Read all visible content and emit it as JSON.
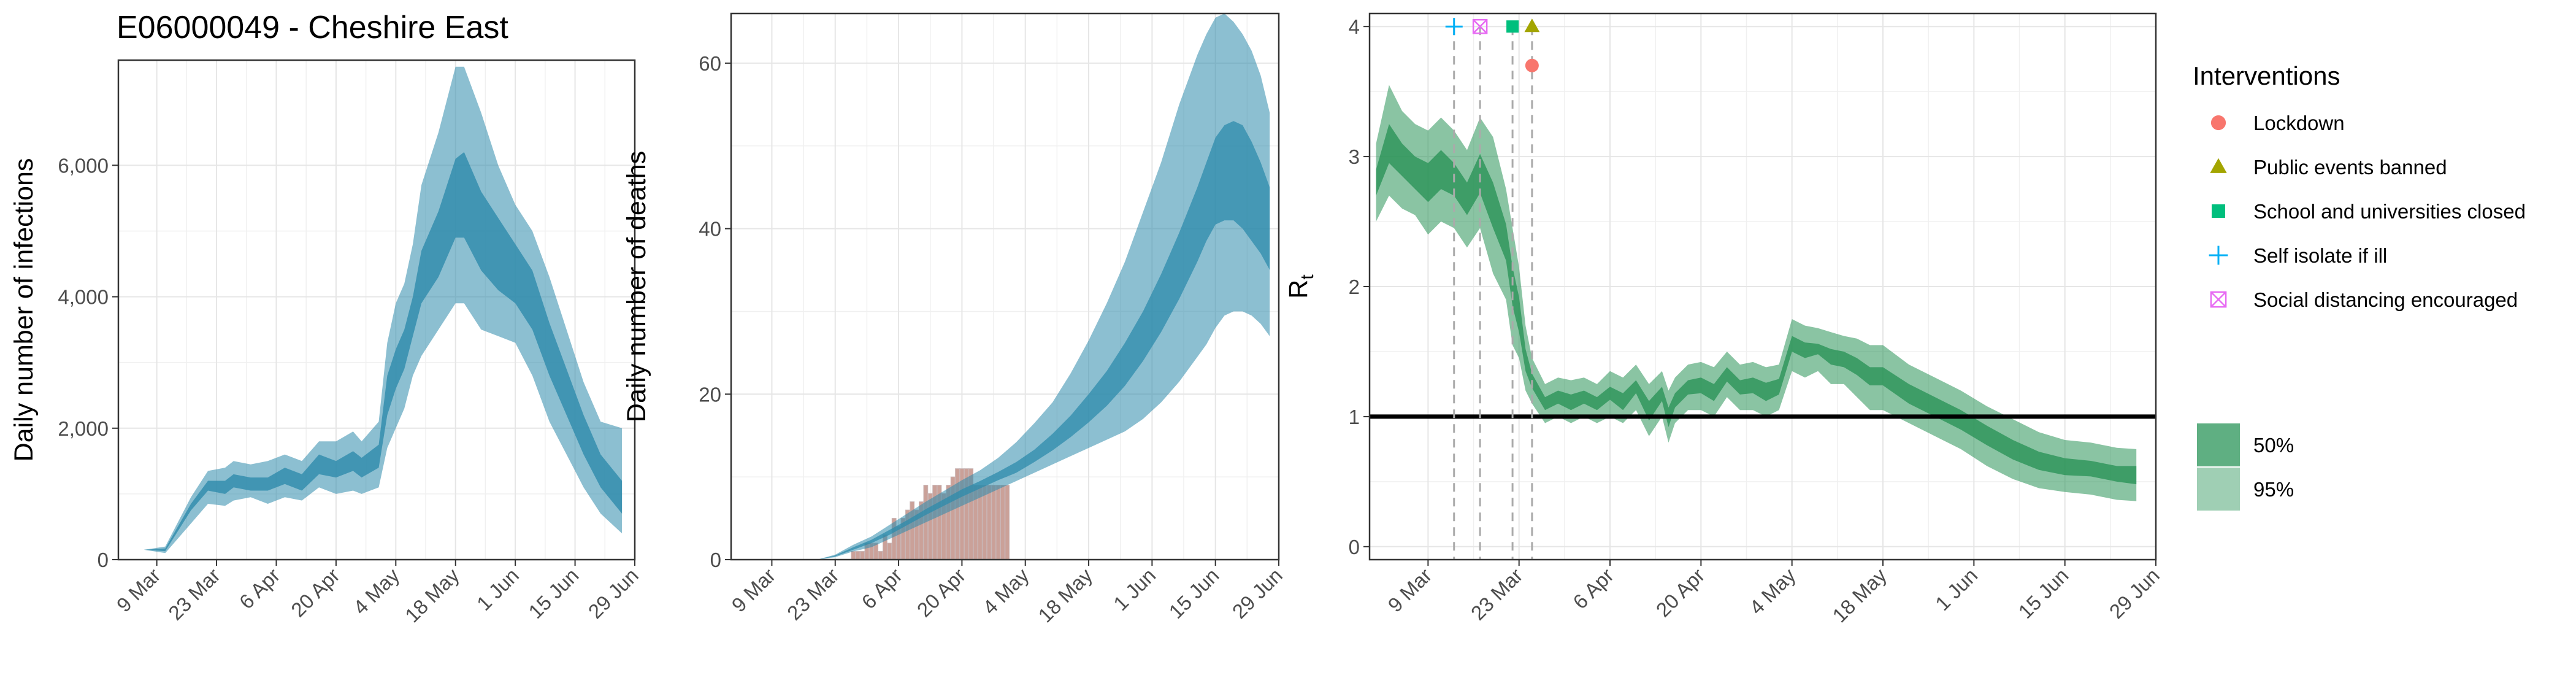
{
  "title": "E06000049 - Cheshire East",
  "colors": {
    "band_blue": "#2e8bab",
    "band_green": "#2a9458",
    "bar": "#c89c94",
    "bar_edge": "#c8b4b4",
    "lockdown": "#f8766d",
    "public_events": "#a3a500",
    "school": "#00bf7d",
    "self_isolate": "#00b0f6",
    "social_distancing": "#e76bf3"
  },
  "chart_data": [
    {
      "type": "area",
      "name": "infections",
      "ylabel": "Daily number of infections",
      "ylim": [
        0,
        7600
      ],
      "yticks": [
        0,
        2000,
        4000,
        6000
      ],
      "ytick_labels": [
        "0",
        "2,000",
        "4,000",
        "6,000"
      ],
      "xtick_labels": [
        "9 Mar",
        "23 Mar",
        "6 Apr",
        "20 Apr",
        "4 May",
        "18 May",
        "1 Jun",
        "15 Jun",
        "29 Jun"
      ],
      "xtick_days": [
        8,
        22,
        36,
        50,
        64,
        78,
        92,
        106,
        120
      ],
      "x_range_days": [
        -1,
        120
      ],
      "grid": true,
      "bands": [
        {
          "label": "95%",
          "x": [
            5,
            10,
            16,
            20,
            24,
            26,
            30,
            34,
            38,
            42,
            46,
            50,
            54,
            56,
            60,
            62,
            64,
            66,
            68,
            70,
            74,
            78,
            80,
            84,
            88,
            92,
            96,
            100,
            104,
            108,
            112,
            117
          ],
          "lo": [
            150,
            100,
            550,
            850,
            820,
            900,
            950,
            850,
            950,
            900,
            1100,
            1000,
            1050,
            1000,
            1100,
            1700,
            2000,
            2300,
            2800,
            3100,
            3500,
            3900,
            3900,
            3500,
            3400,
            3300,
            2800,
            2100,
            1600,
            1100,
            700,
            400
          ],
          "hi": [
            150,
            200,
            950,
            1350,
            1400,
            1500,
            1450,
            1500,
            1600,
            1500,
            1800,
            1800,
            1950,
            1800,
            2100,
            3300,
            3900,
            4200,
            4800,
            5700,
            6500,
            7500,
            7500,
            6800,
            6000,
            5400,
            5000,
            4300,
            3500,
            2700,
            2100,
            2000
          ]
        },
        {
          "label": "50%",
          "x": [
            5,
            10,
            16,
            20,
            24,
            26,
            30,
            34,
            38,
            42,
            46,
            50,
            54,
            56,
            60,
            62,
            64,
            66,
            68,
            70,
            74,
            78,
            80,
            84,
            88,
            92,
            96,
            100,
            104,
            108,
            112,
            117
          ],
          "lo": [
            150,
            130,
            750,
            1050,
            1000,
            1100,
            1050,
            1050,
            1150,
            1050,
            1300,
            1250,
            1350,
            1250,
            1400,
            2200,
            2600,
            2900,
            3400,
            3900,
            4300,
            4900,
            4900,
            4400,
            4100,
            3900,
            3500,
            2800,
            2200,
            1600,
            1100,
            700
          ],
          "hi": [
            150,
            170,
            850,
            1200,
            1200,
            1300,
            1250,
            1250,
            1400,
            1300,
            1600,
            1500,
            1650,
            1550,
            1750,
            2800,
            3200,
            3500,
            4000,
            4700,
            5300,
            6100,
            6200,
            5600,
            5200,
            4800,
            4400,
            3600,
            2900,
            2200,
            1600,
            1200
          ]
        }
      ]
    },
    {
      "type": "bar",
      "name": "deaths",
      "ylabel": "Daily number of deaths",
      "ylim": [
        0,
        66
      ],
      "yticks": [
        0,
        20,
        40,
        60
      ],
      "ytick_labels": [
        "0",
        "20",
        "40",
        "60"
      ],
      "xtick_labels": [
        "9 Mar",
        "23 Mar",
        "6 Apr",
        "20 Apr",
        "4 May",
        "18 May",
        "1 Jun",
        "15 Jun",
        "29 Jun"
      ],
      "xtick_days": [
        8,
        22,
        36,
        50,
        64,
        78,
        92,
        106,
        120
      ],
      "x_range_days": [
        -1,
        120
      ],
      "grid": true,
      "bars": {
        "x": [
          22,
          23,
          24,
          25,
          26,
          27,
          28,
          29,
          30,
          31,
          32,
          33,
          34,
          35,
          36,
          37,
          38,
          39,
          40,
          41,
          42,
          43,
          44,
          45,
          46,
          47,
          48,
          49,
          50,
          51,
          52,
          53,
          54,
          55,
          56,
          57,
          58,
          59,
          60
        ],
        "values": [
          0,
          0,
          0,
          0,
          1,
          1,
          1,
          2,
          2,
          2,
          1,
          3,
          2,
          5,
          4,
          5,
          6,
          7,
          6,
          7,
          9,
          8,
          9,
          9,
          8,
          9,
          10,
          11,
          11,
          11,
          11,
          9,
          9,
          9,
          9,
          9,
          9,
          9,
          9
        ]
      },
      "bands": [
        {
          "label": "95%",
          "x": [
            14,
            18,
            22,
            26,
            30,
            34,
            38,
            42,
            46,
            50,
            54,
            58,
            62,
            66,
            70,
            74,
            78,
            82,
            86,
            90,
            94,
            98,
            102,
            104,
            106,
            108,
            110,
            112,
            114,
            116,
            118
          ],
          "lo": [
            0,
            0,
            0.3,
            1,
            1.5,
            2.5,
            3.5,
            4.5,
            5.5,
            6.5,
            7.5,
            8.5,
            9.5,
            10.5,
            11.5,
            12.5,
            13.5,
            14.5,
            15.5,
            17,
            19,
            21.5,
            24.5,
            26,
            28,
            29.5,
            30,
            30,
            29.5,
            28.5,
            27
          ],
          "hi": [
            0,
            0,
            0.6,
            1.8,
            2.8,
            4.2,
            5.6,
            7,
            8.3,
            9.6,
            10.8,
            12.3,
            14.2,
            16.5,
            19,
            22.5,
            26.5,
            31,
            36,
            42,
            48,
            55,
            61,
            63.5,
            65.5,
            66,
            65,
            63.5,
            61.5,
            58.5,
            54
          ]
        },
        {
          "label": "50%",
          "x": [
            14,
            18,
            22,
            26,
            30,
            34,
            38,
            42,
            46,
            50,
            54,
            58,
            62,
            66,
            70,
            74,
            78,
            82,
            86,
            90,
            94,
            98,
            102,
            104,
            106,
            108,
            110,
            112,
            114,
            116,
            118
          ],
          "lo": [
            0,
            0,
            0.4,
            1.2,
            2,
            3,
            4.2,
            5.4,
            6.5,
            7.6,
            8.6,
            9.6,
            10.5,
            11.8,
            13.2,
            14.8,
            16.6,
            18.6,
            21,
            24,
            27.5,
            31.5,
            36,
            38.5,
            40.5,
            41,
            41,
            40,
            38.5,
            37,
            35
          ]
        },
        {
          "label": "50% upper",
          "x": [
            14,
            18,
            22,
            26,
            30,
            34,
            38,
            42,
            46,
            50,
            54,
            58,
            62,
            66,
            70,
            74,
            78,
            82,
            86,
            90,
            94,
            98,
            102,
            104,
            106,
            108,
            110,
            112,
            114,
            116,
            118
          ],
          "hi": [
            0,
            0,
            0.5,
            1.5,
            2.4,
            3.6,
            4.8,
            6.1,
            7.3,
            8.5,
            9.5,
            10.6,
            11.8,
            13.3,
            15.2,
            17.4,
            20,
            22.8,
            26.2,
            30,
            34.5,
            39.5,
            45,
            48,
            51,
            52.5,
            53,
            52.5,
            50.5,
            48,
            45
          ]
        }
      ]
    },
    {
      "type": "area",
      "name": "rt",
      "ylabel": "R",
      "ylabel_subscript": "t",
      "ylim": [
        -0.1,
        4.1
      ],
      "yticks": [
        0,
        1,
        2,
        3,
        4
      ],
      "ytick_labels": [
        "0",
        "1",
        "2",
        "3",
        "4"
      ],
      "xtick_labels": [
        "9 Mar",
        "23 Mar",
        "6 Apr",
        "20 Apr",
        "4 May",
        "18 May",
        "1 Jun",
        "15 Jun",
        "29 Jun"
      ],
      "xtick_days": [
        8,
        22,
        36,
        50,
        64,
        78,
        92,
        106,
        120
      ],
      "x_range_days": [
        -1,
        120
      ],
      "grid": true,
      "reference_line": 1,
      "bands": [
        {
          "label": "95%",
          "x": [
            0,
            2,
            4,
            6,
            8,
            10,
            12,
            14,
            16,
            18,
            20,
            21,
            22,
            23,
            24,
            26,
            28,
            30,
            32,
            34,
            36,
            38,
            40,
            42,
            44,
            45,
            46,
            48,
            50,
            52,
            54,
            56,
            58,
            60,
            62,
            64,
            66,
            68,
            70,
            72,
            74,
            76,
            78,
            82,
            86,
            90,
            94,
            98,
            102,
            106,
            110,
            114,
            117
          ],
          "lo": [
            2.5,
            2.7,
            2.6,
            2.55,
            2.4,
            2.5,
            2.45,
            2.3,
            2.45,
            2.1,
            1.9,
            1.55,
            1.45,
            1.2,
            1.1,
            0.95,
            1.0,
            0.95,
            1.0,
            0.95,
            1.0,
            0.95,
            1.05,
            0.85,
            1.0,
            0.8,
            0.95,
            1.05,
            1.05,
            1.0,
            1.15,
            1.05,
            1.05,
            1.0,
            1.05,
            1.35,
            1.3,
            1.35,
            1.25,
            1.25,
            1.15,
            1.05,
            1.05,
            0.95,
            0.85,
            0.75,
            0.62,
            0.52,
            0.45,
            0.42,
            0.4,
            0.36,
            0.35
          ],
          "hi": [
            3.1,
            3.55,
            3.35,
            3.25,
            3.2,
            3.3,
            3.2,
            3.05,
            3.3,
            3.15,
            2.75,
            2.45,
            2.15,
            1.7,
            1.45,
            1.25,
            1.3,
            1.28,
            1.3,
            1.25,
            1.35,
            1.3,
            1.4,
            1.25,
            1.35,
            1.2,
            1.3,
            1.4,
            1.42,
            1.38,
            1.5,
            1.4,
            1.42,
            1.38,
            1.4,
            1.75,
            1.7,
            1.68,
            1.65,
            1.62,
            1.6,
            1.55,
            1.55,
            1.4,
            1.3,
            1.2,
            1.08,
            0.98,
            0.88,
            0.82,
            0.8,
            0.76,
            0.75
          ]
        },
        {
          "label": "50%",
          "x": [
            0,
            2,
            4,
            6,
            8,
            10,
            12,
            14,
            16,
            18,
            20,
            21,
            22,
            23,
            24,
            26,
            28,
            30,
            32,
            34,
            36,
            38,
            40,
            42,
            44,
            45,
            46,
            48,
            50,
            52,
            54,
            56,
            58,
            60,
            62,
            64,
            66,
            68,
            70,
            72,
            74,
            76,
            78,
            82,
            86,
            90,
            94,
            98,
            102,
            106,
            110,
            114,
            117
          ],
          "lo": [
            2.7,
            2.95,
            2.85,
            2.75,
            2.65,
            2.75,
            2.7,
            2.55,
            2.72,
            2.45,
            2.2,
            1.85,
            1.65,
            1.35,
            1.22,
            1.05,
            1.1,
            1.05,
            1.1,
            1.05,
            1.13,
            1.05,
            1.18,
            0.97,
            1.12,
            0.92,
            1.07,
            1.17,
            1.18,
            1.12,
            1.27,
            1.17,
            1.18,
            1.12,
            1.17,
            1.5,
            1.45,
            1.48,
            1.4,
            1.38,
            1.32,
            1.24,
            1.24,
            1.1,
            1.0,
            0.9,
            0.78,
            0.67,
            0.59,
            0.55,
            0.54,
            0.5,
            0.48
          ],
          "hi": [
            2.9,
            3.25,
            3.1,
            3.0,
            2.95,
            3.05,
            2.95,
            2.8,
            3.02,
            2.8,
            2.48,
            2.15,
            1.92,
            1.52,
            1.33,
            1.15,
            1.2,
            1.17,
            1.2,
            1.15,
            1.23,
            1.18,
            1.28,
            1.12,
            1.23,
            1.07,
            1.18,
            1.28,
            1.3,
            1.25,
            1.38,
            1.28,
            1.3,
            1.26,
            1.29,
            1.62,
            1.57,
            1.56,
            1.52,
            1.5,
            1.45,
            1.38,
            1.38,
            1.25,
            1.15,
            1.05,
            0.93,
            0.82,
            0.73,
            0.68,
            0.66,
            0.62,
            0.62
          ]
        }
      ],
      "interventions": [
        {
          "name": "Self isolate if ill",
          "day": 12,
          "y": 4.0,
          "symbol": "plus"
        },
        {
          "name": "Social distancing encouraged",
          "day": 16,
          "y": 4.0,
          "symbol": "boxx"
        },
        {
          "name": "School and universities closed",
          "day": 21,
          "y": 4.0,
          "symbol": "square"
        },
        {
          "name": "Public events banned",
          "day": 24,
          "y": 4.0,
          "symbol": "triangle"
        },
        {
          "name": "Lockdown",
          "day": 24,
          "y": 3.7,
          "symbol": "circle"
        }
      ]
    }
  ],
  "legend": {
    "title": "Interventions",
    "items": [
      {
        "label": "Lockdown",
        "symbol": "circle",
        "color_key": "lockdown"
      },
      {
        "label": "Public events banned",
        "symbol": "triangle",
        "color_key": "public_events"
      },
      {
        "label": "School and universities closed",
        "symbol": "square",
        "color_key": "school"
      },
      {
        "label": "Self isolate if ill",
        "symbol": "plus",
        "color_key": "self_isolate"
      },
      {
        "label": "Social distancing encouraged",
        "symbol": "boxx",
        "color_key": "social_distancing"
      }
    ],
    "ci": [
      {
        "label": "50%",
        "opacity": 0.75
      },
      {
        "label": "95%",
        "opacity": 0.45
      }
    ]
  }
}
